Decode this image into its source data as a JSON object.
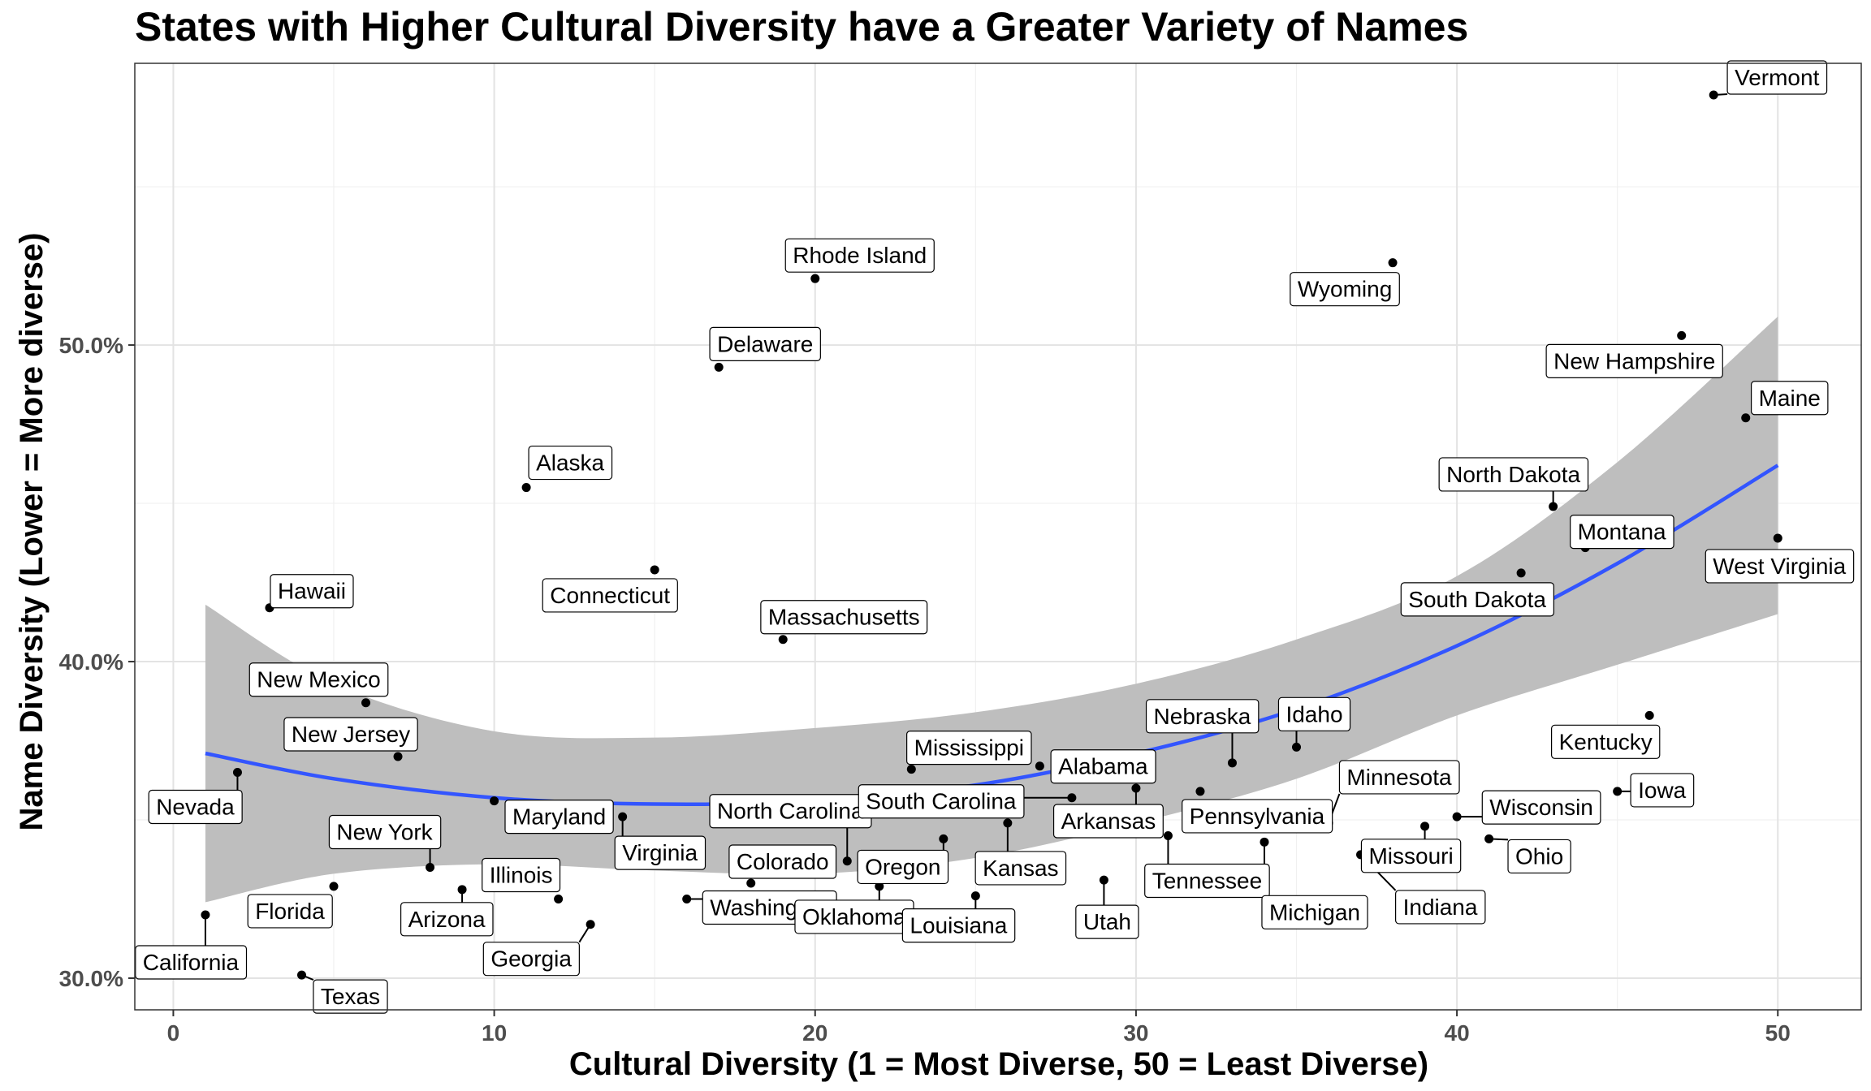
{
  "chart_data": {
    "type": "scatter",
    "title": "States with Higher Cultural Diversity have a Greater Variety of Names",
    "xlabel": "Cultural Diversity (1 = Most Diverse, 50 = Least Diverse)",
    "ylabel": "Name Diversity (Lower = More diverse)",
    "xlim": [
      -1.2,
      52.6
    ],
    "ylim": [
      29.0,
      58.9
    ],
    "x_ticks": [
      0,
      10,
      20,
      30,
      40,
      50
    ],
    "x_tick_labels": [
      "0",
      "10",
      "20",
      "30",
      "40",
      "50"
    ],
    "y_ticks": [
      30,
      40,
      50
    ],
    "y_tick_labels": [
      "30.0%",
      "40.0%",
      "50.0%"
    ],
    "grid": true,
    "points": [
      {
        "state": "California",
        "x": 1,
        "y": 32.0
      },
      {
        "state": "Nevada",
        "x": 2,
        "y": 36.5
      },
      {
        "state": "Hawaii",
        "x": 3,
        "y": 41.7
      },
      {
        "state": "Texas",
        "x": 4,
        "y": 30.1
      },
      {
        "state": "Florida",
        "x": 5,
        "y": 32.9
      },
      {
        "state": "New Mexico",
        "x": 6,
        "y": 38.7
      },
      {
        "state": "New Jersey",
        "x": 7,
        "y": 37.0
      },
      {
        "state": "New York",
        "x": 8,
        "y": 33.5
      },
      {
        "state": "Arizona",
        "x": 9,
        "y": 32.8
      },
      {
        "state": "Maryland",
        "x": 10,
        "y": 35.6
      },
      {
        "state": "Alaska",
        "x": 11,
        "y": 45.5
      },
      {
        "state": "Illinois",
        "x": 12,
        "y": 32.5
      },
      {
        "state": "Georgia",
        "x": 13,
        "y": 31.7
      },
      {
        "state": "Virginia",
        "x": 14,
        "y": 35.1
      },
      {
        "state": "Connecticut",
        "x": 15,
        "y": 42.9
      },
      {
        "state": "Washington",
        "x": 16,
        "y": 32.5
      },
      {
        "state": "Delaware",
        "x": 17,
        "y": 49.3
      },
      {
        "state": "Colorado",
        "x": 18,
        "y": 33.0
      },
      {
        "state": "Massachusetts",
        "x": 19,
        "y": 40.7
      },
      {
        "state": "Rhode Island",
        "x": 20,
        "y": 52.1
      },
      {
        "state": "North Carolina",
        "x": 21,
        "y": 33.7
      },
      {
        "state": "Oklahoma",
        "x": 22,
        "y": 32.9
      },
      {
        "state": "Mississippi",
        "x": 23,
        "y": 36.6
      },
      {
        "state": "Oregon",
        "x": 24,
        "y": 34.4
      },
      {
        "state": "Louisiana",
        "x": 25,
        "y": 32.6
      },
      {
        "state": "Kansas",
        "x": 26,
        "y": 34.9
      },
      {
        "state": "Alabama",
        "x": 27,
        "y": 36.7
      },
      {
        "state": "South Carolina",
        "x": 28,
        "y": 35.7
      },
      {
        "state": "Utah",
        "x": 29,
        "y": 33.1
      },
      {
        "state": "Arkansas",
        "x": 30,
        "y": 36.0
      },
      {
        "state": "Tennessee",
        "x": 31,
        "y": 34.5
      },
      {
        "state": "Pennsylvania",
        "x": 32,
        "y": 35.9
      },
      {
        "state": "Nebraska",
        "x": 33,
        "y": 36.8
      },
      {
        "state": "Michigan",
        "x": 34,
        "y": 34.3
      },
      {
        "state": "Idaho",
        "x": 35,
        "y": 37.3
      },
      {
        "state": "Minnesota",
        "x": 36,
        "y": 34.9
      },
      {
        "state": "Indiana",
        "x": 37,
        "y": 33.9
      },
      {
        "state": "Wyoming",
        "x": 38,
        "y": 52.6
      },
      {
        "state": "Missouri",
        "x": 39,
        "y": 34.8
      },
      {
        "state": "Wisconsin",
        "x": 40,
        "y": 35.1
      },
      {
        "state": "Ohio",
        "x": 41,
        "y": 34.4
      },
      {
        "state": "South Dakota",
        "x": 42,
        "y": 42.8
      },
      {
        "state": "North Dakota",
        "x": 43,
        "y": 44.9
      },
      {
        "state": "Montana",
        "x": 44,
        "y": 43.6
      },
      {
        "state": "Iowa",
        "x": 45,
        "y": 35.9
      },
      {
        "state": "Kentucky",
        "x": 46,
        "y": 38.3
      },
      {
        "state": "New Hampshire",
        "x": 47,
        "y": 50.3
      },
      {
        "state": "Vermont",
        "x": 48,
        "y": 57.9
      },
      {
        "state": "Maine",
        "x": 49,
        "y": 47.7
      },
      {
        "state": "West Virginia",
        "x": 50,
        "y": 43.9
      }
    ],
    "trend": {
      "method": "smooth",
      "color": "#3355ff",
      "band_color": "#bebebe",
      "x": [
        1,
        5,
        10,
        15,
        20,
        25,
        30,
        35,
        40,
        45,
        50
      ],
      "y": [
        37.1,
        36.3,
        35.7,
        35.5,
        35.6,
        36.1,
        37.1,
        38.5,
        40.5,
        43.1,
        46.2
      ],
      "ci_lower": [
        32.4,
        33.3,
        33.6,
        33.4,
        33.3,
        33.8,
        34.9,
        36.3,
        38.3,
        39.9,
        41.5
      ],
      "ci_upper": [
        41.8,
        39.3,
        37.8,
        37.6,
        37.9,
        38.4,
        39.3,
        40.7,
        42.7,
        46.3,
        50.9
      ]
    }
  }
}
